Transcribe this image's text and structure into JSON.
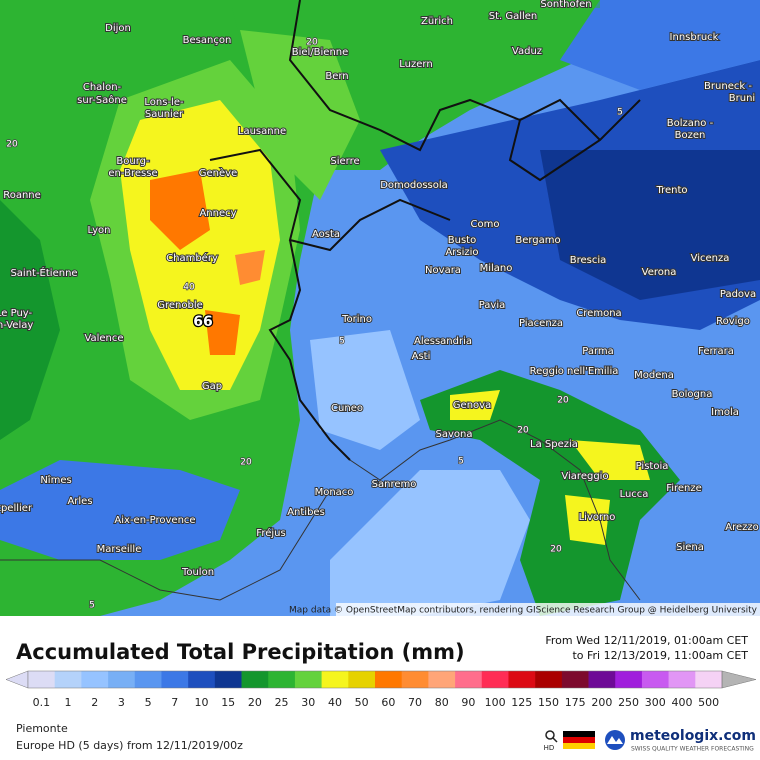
{
  "map": {
    "cities": [
      "Sonthofen",
      "Dijon",
      "Besançon",
      "Zürich",
      "St. Gallen",
      "Innsbruck",
      "Biel/Bienne",
      "Vaduz",
      "Luzern",
      "Bern",
      "Chalon-",
      "sur-Saône",
      "Bruneck -",
      "Bruni",
      "Lons-le-",
      "Saunier",
      "Bolzano -",
      "Bozen",
      "Lausanne",
      "Bourg-",
      "en-Bresse",
      "Sierre",
      "Genève",
      "Domodossola",
      "Trento",
      "Roanne",
      "Annecy",
      "Como",
      "Lyon",
      "Aosta",
      "Busto",
      "Arsizio",
      "Bergamo",
      "Chambéry",
      "Brescia",
      "Vicenza",
      "Saint-Étienne",
      "Novara",
      "Milano",
      "Verona",
      "Padova",
      "Grenoble",
      "Le Puy-",
      "en-Velay",
      "Pavia",
      "Cremona",
      "Piacenza",
      "Torino",
      "Rovigo",
      "Valence",
      "Alessandria",
      "Asti",
      "Parma",
      "Ferrara",
      "Reggio nell'Emilia",
      "Modena",
      "Gap",
      "Bologna",
      "Cuneo",
      "Genova",
      "Imola",
      "Savona",
      "La Spezia",
      "Pistoia",
      "Viareggio",
      "Nîmes",
      "Firenze",
      "Sanremo",
      "Monaco",
      "Lucca",
      "Arles",
      "Montpellier",
      "Antibes",
      "Aix-en-Provence",
      "Livorno",
      "Arezzo",
      "Fréjus",
      "Marseille",
      "Siena",
      "Toulon"
    ],
    "contour_labels": [
      20,
      20,
      40,
      66,
      5,
      20,
      20,
      5,
      20,
      5,
      20,
      5
    ],
    "attribution": "Map data © OpenStreetMap contributors, rendering GIScience Research Group @ Heidelberg University"
  },
  "header": {
    "title": "Accumulated Total Precipitation (mm)",
    "from": "From Wed 12/11/2019, 01:00am CET",
    "to": "to Fri 12/13/2019, 11:00am CET"
  },
  "legend": {
    "values": [
      0.1,
      1,
      2,
      3,
      5,
      7,
      10,
      15,
      20,
      25,
      30,
      40,
      50,
      60,
      70,
      80,
      90,
      100,
      125,
      150,
      175,
      200,
      250,
      300,
      400,
      500
    ],
    "colors": [
      "#dcdcf5",
      "#b4d2fa",
      "#96c3ff",
      "#78aff5",
      "#5a96f0",
      "#3c78e6",
      "#1e4fbe",
      "#0f3691",
      "#14962d",
      "#2db432",
      "#64d23c",
      "#f5f51e",
      "#e6d200",
      "#ff7800",
      "#ff8c32",
      "#ffa578",
      "#ff6e8c",
      "#ff2d55",
      "#dc0a14",
      "#aa0000",
      "#7d0a2d",
      "#6e0a96",
      "#a01edc",
      "#c85af0",
      "#e196f5",
      "#f5d2f5"
    ]
  },
  "footer": {
    "region": "Piemonte",
    "model": "Europe HD (5 days) from 12/11/2019/00z",
    "hd": "HD",
    "brand": "meteologix.com",
    "tagline": "SWISS QUALITY WEATHER FORECASTING"
  }
}
